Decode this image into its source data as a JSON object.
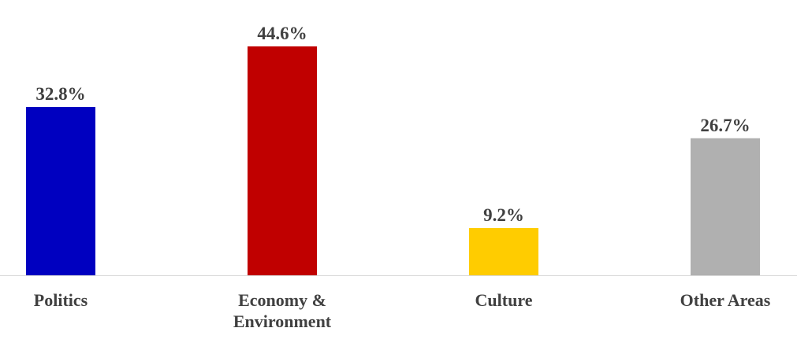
{
  "chart_data": {
    "type": "bar",
    "categories": [
      "Politics",
      "Economy & Environment",
      "Culture",
      "Other Areas"
    ],
    "values": [
      32.8,
      44.6,
      9.2,
      26.7
    ],
    "value_labels": [
      "32.8%",
      "44.6%",
      "9.2%",
      "26.7%"
    ],
    "colors": [
      "#0000c0",
      "#c00000",
      "#ffcc00",
      "#b0b0b0"
    ]
  }
}
